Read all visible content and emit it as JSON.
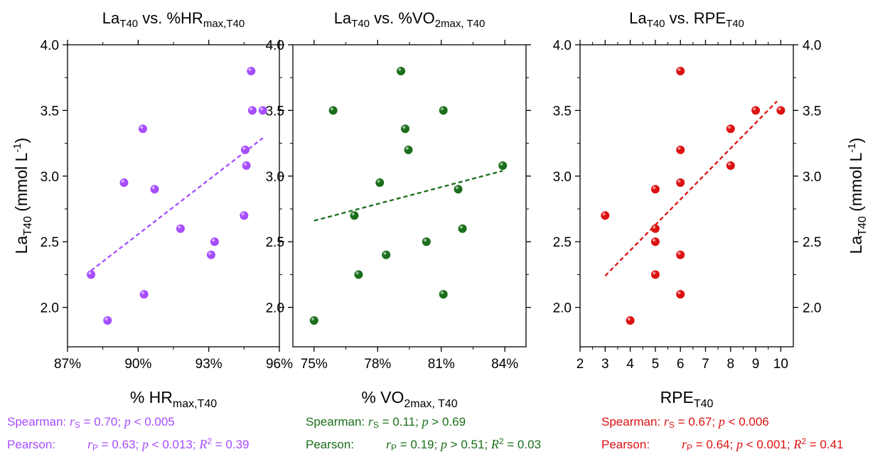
{
  "chart_data": [
    {
      "type": "scatter",
      "title": "La",
      "title_sub": "T40",
      "title_mid": " vs. %HR",
      "title_sub2": "max,T40",
      "xlabel": "% HR",
      "xlabel_sub": "max,T40",
      "ylabel": "La",
      "ylabel_sub": "T40",
      "ylabel_rest": " (mmol L",
      "ylabel_sup": "-1",
      "ylabel_end": ")",
      "color": "#a64dff",
      "xlim": [
        87,
        96
      ],
      "ylim": [
        1.7,
        4.0
      ],
      "xticks": [
        87,
        90,
        93,
        96
      ],
      "xtick_labels": [
        "87%",
        "90%",
        "93%",
        "96%"
      ],
      "yticks": [
        2.0,
        2.5,
        3.0,
        3.5,
        4.0
      ],
      "ytick_labels": [
        "2.0",
        "2.5",
        "3.0",
        "3.5",
        "4.0"
      ],
      "x": [
        88.0,
        88.7,
        89.4,
        90.2,
        90.25,
        90.7,
        91.8,
        93.1,
        93.25,
        94.5,
        94.55,
        94.6,
        94.8,
        94.85,
        95.3
      ],
      "y": [
        2.25,
        1.9,
        2.95,
        3.36,
        2.1,
        2.9,
        2.6,
        2.4,
        2.5,
        2.7,
        3.2,
        3.08,
        3.8,
        3.5,
        3.5
      ],
      "trend": [
        [
          88.0,
          2.28
        ],
        [
          95.3,
          3.29
        ]
      ],
      "stats": {
        "spearman_label": "Spearman:",
        "spearman_sym": "r",
        "spearman_sub": "S",
        "spearman_val": " = 0.70; ",
        "spearman_p": "p",
        "spearman_pval": " < 0.005",
        "pearson_label": "Pearson:",
        "pearson_sym": "r",
        "pearson_sub": "P",
        "pearson_val": " = 0.63; ",
        "pearson_p": "p",
        "pearson_pval": " < 0.013; ",
        "pearson_r2": "R",
        "pearson_r2_sup": "2",
        "pearson_r2_val": " = 0.39"
      }
    },
    {
      "type": "scatter",
      "title": "La",
      "title_sub": "T40",
      "title_mid": " vs. %VO",
      "title_sub2": "2max, T40",
      "xlabel": "% VO",
      "xlabel_sub": "2max, T40",
      "color": "#1a6e1a",
      "xlim": [
        74,
        85
      ],
      "ylim": [
        1.7,
        4.0
      ],
      "xticks": [
        75,
        78,
        81,
        84
      ],
      "xtick_labels": [
        "75%",
        "78%",
        "81%",
        "84%"
      ],
      "yticks": [
        2.0,
        2.5,
        3.0,
        3.5,
        4.0
      ],
      "ytick_labels": [
        "2.0",
        "2.5",
        "3.0",
        "3.5",
        "4.0"
      ],
      "x": [
        75.0,
        75.9,
        76.9,
        77.1,
        78.1,
        78.4,
        79.1,
        79.3,
        79.45,
        80.3,
        81.1,
        81.1,
        81.8,
        82.0,
        83.9
      ],
      "y": [
        1.9,
        3.5,
        2.7,
        2.25,
        2.95,
        2.4,
        3.8,
        3.36,
        3.2,
        2.5,
        2.1,
        3.5,
        2.9,
        2.6,
        3.08
      ],
      "trend": [
        [
          75.0,
          2.66
        ],
        [
          83.9,
          3.04
        ]
      ],
      "stats": {
        "spearman_label": "Spearman:",
        "spearman_sym": "r",
        "spearman_sub": "S",
        "spearman_val": " = 0.11; ",
        "spearman_p": "p",
        "spearman_pval": " > 0.69",
        "pearson_label": "Pearson:",
        "pearson_sym": "r",
        "pearson_sub": "P",
        "pearson_val": " = 0.19; ",
        "pearson_p": "p",
        "pearson_pval": " > 0.51; ",
        "pearson_r2": "R",
        "pearson_r2_sup": "2",
        "pearson_r2_val": " = 0.03"
      }
    },
    {
      "type": "scatter",
      "title": "La",
      "title_sub": "T40",
      "title_mid": " vs. RPE",
      "title_sub2": "T40",
      "xlabel": "RPE",
      "xlabel_sub": "T40",
      "ylabel": "La",
      "ylabel_sub": "T40",
      "ylabel_rest": " (mmol L",
      "ylabel_sup": "-1",
      "ylabel_end": ")",
      "color": "#dd1111",
      "xlim": [
        2,
        10.5
      ],
      "ylim": [
        1.7,
        4.0
      ],
      "xticks": [
        2,
        3,
        4,
        5,
        6,
        7,
        8,
        9,
        10
      ],
      "xtick_labels": [
        "2",
        "3",
        "4",
        "5",
        "6",
        "7",
        "8",
        "9",
        "10"
      ],
      "yticks": [
        2.0,
        2.5,
        3.0,
        3.5,
        4.0
      ],
      "ytick_labels": [
        "2.0",
        "2.5",
        "3.0",
        "3.5",
        "4.0"
      ],
      "x": [
        3,
        4,
        5,
        5,
        5,
        5,
        6,
        6,
        6,
        6,
        6,
        8,
        8,
        9,
        10
      ],
      "y": [
        2.7,
        1.9,
        2.9,
        2.6,
        2.5,
        2.25,
        3.8,
        3.2,
        2.95,
        2.4,
        2.1,
        3.36,
        3.08,
        3.5,
        3.5
      ],
      "trend": [
        [
          3,
          2.24
        ],
        [
          9.85,
          3.57
        ]
      ],
      "stats": {
        "spearman_label": "Spearman:",
        "spearman_sym": "r",
        "spearman_sub": "S",
        "spearman_val": " = 0.67; ",
        "spearman_p": "p",
        "spearman_pval": " < 0.006",
        "pearson_label": "Pearson:",
        "pearson_sym": "r",
        "pearson_sub": "P",
        "pearson_val": " = 0.64; ",
        "pearson_p": "p",
        "pearson_pval": " < 0.001; ",
        "pearson_r2": "R",
        "pearson_r2_sup": "2",
        "pearson_r2_val": " = 0.41"
      }
    }
  ]
}
